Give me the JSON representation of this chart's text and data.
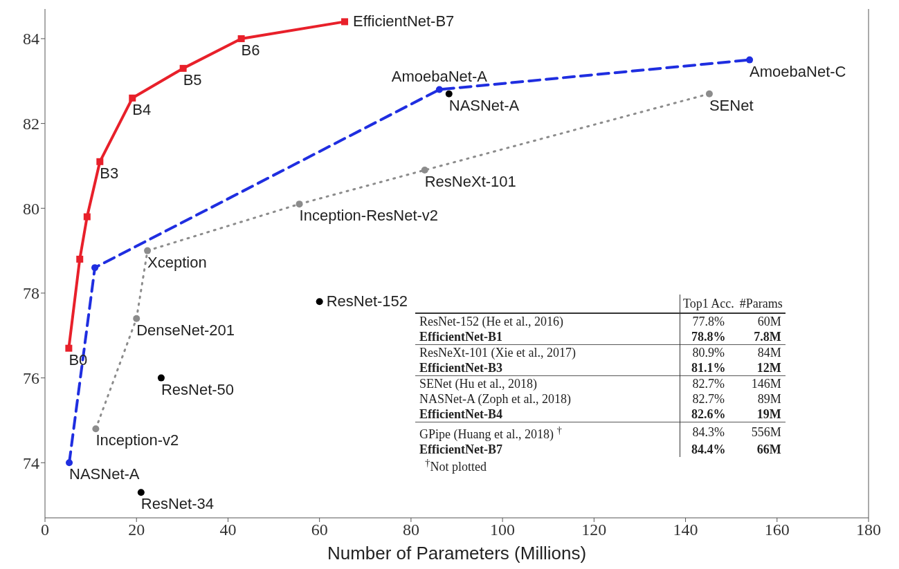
{
  "chart_data": {
    "type": "line",
    "xlabel": "Number of Parameters (Millions)",
    "xlim": [
      0,
      180
    ],
    "xticks": [
      0,
      20,
      40,
      60,
      80,
      100,
      120,
      140,
      160,
      180
    ],
    "ylim": [
      72.7,
      84.7
    ],
    "yticks": [
      74,
      76,
      78,
      80,
      82,
      84
    ],
    "series": [
      {
        "color": "#e8202a",
        "marker": "square",
        "line_style": "solid",
        "x": [
          5.2,
          7.6,
          9.2,
          12.0,
          19.1,
          30.2,
          42.9,
          65.5
        ],
        "values": [
          76.7,
          78.8,
          79.8,
          81.1,
          82.6,
          83.3,
          84.0,
          84.4
        ]
      },
      {
        "type": "line",
        "color": "#1f2ee0",
        "marker": "circle",
        "line_style": "dashed",
        "x": [
          5.3,
          10.9,
          86.2,
          154.0
        ],
        "values": [
          74.0,
          78.6,
          82.8,
          83.5
        ]
      },
      {
        "type": "line",
        "color": "#8c8c8c",
        "marker": "circle",
        "line_style": "dotted",
        "x": [
          11.1,
          20.0,
          22.4,
          55.6,
          83.0,
          145.2
        ],
        "values": [
          74.8,
          77.4,
          79.0,
          80.1,
          80.9,
          82.7
        ]
      },
      {
        "type": "scatter",
        "color": "#000000",
        "marker": "circle",
        "x": [
          88.3,
          60.0,
          25.4,
          21.0
        ],
        "values": [
          82.7,
          77.8,
          76.0,
          73.3
        ]
      }
    ],
    "annotations": [
      {
        "text": "B0",
        "x": 5.2,
        "y": 76.7
      },
      {
        "text": "B3",
        "x": 12.0,
        "y": 81.1
      },
      {
        "text": "B4",
        "x": 19.1,
        "y": 82.6
      },
      {
        "text": "B5",
        "x": 30.2,
        "y": 83.3
      },
      {
        "text": "B6",
        "x": 42.9,
        "y": 84.0
      },
      {
        "text": "EfficientNet-B7",
        "x": 65.5,
        "y": 84.4
      },
      {
        "text": "NASNet-A",
        "x": 5.3,
        "y": 74.0
      },
      {
        "text": "AmoebaNet-A",
        "x": 86.2,
        "y": 82.8
      },
      {
        "text": "AmoebaNet-C",
        "x": 154.0,
        "y": 83.5
      },
      {
        "text": "NASNet-A",
        "x": 88.3,
        "y": 82.7
      },
      {
        "text": "SENet",
        "x": 145.2,
        "y": 82.7
      },
      {
        "text": "ResNeXt-101",
        "x": 83.0,
        "y": 80.9
      },
      {
        "text": "Inception-ResNet-v2",
        "x": 55.6,
        "y": 80.1
      },
      {
        "text": "Xception",
        "x": 22.4,
        "y": 79.0
      },
      {
        "text": "DenseNet-201",
        "x": 20.0,
        "y": 77.4
      },
      {
        "text": "ResNet-50",
        "x": 25.4,
        "y": 76.0
      },
      {
        "text": "Inception-v2",
        "x": 11.1,
        "y": 74.8
      },
      {
        "text": "ResNet-34",
        "x": 21.0,
        "y": 73.3
      },
      {
        "text": "ResNet-152",
        "x": 60.0,
        "y": 77.8
      },
      "Top1 Acc.",
      "#Params",
      "ResNet-152 (He et al., 2016)",
      "77.8%",
      "60M",
      "EfficientNet-B1",
      "78.8%",
      "7.8M",
      "ResNeXt-101 (Xie et al., 2017)",
      "80.9%",
      "84M",
      "EfficientNet-B3",
      "81.1%",
      "12M",
      "SENet (Hu et al., 2018)",
      "82.7%",
      "146M",
      "NASNet-A (Zoph et al., 2018)",
      "82.7%",
      "89M",
      "EfficientNet-B4",
      "82.6%",
      "19M",
      "GPipe (Huang et al., 2018) $^{†}$",
      "84.3%",
      "556M",
      "EfficientNet-B7",
      "84.4%",
      "66M",
      "$^{†}$Not plotted"
    ]
  }
}
